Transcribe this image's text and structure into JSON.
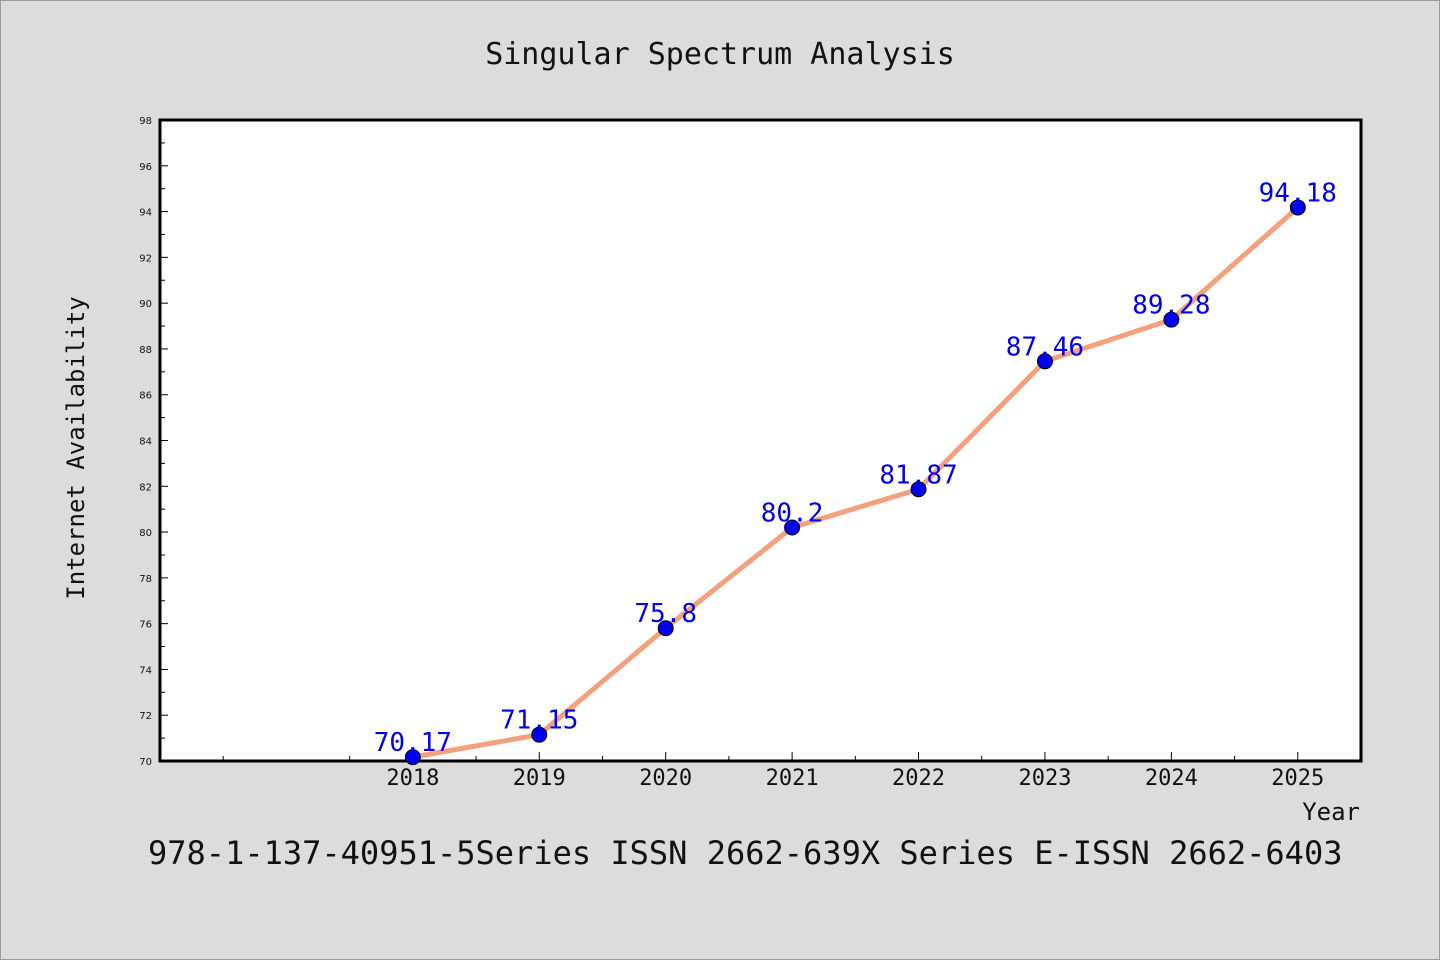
{
  "chart_data": {
    "type": "line",
    "title": "Singular Spectrum Analysis",
    "xlabel": "Year",
    "ylabel": "Internet Availability",
    "x": [
      2018,
      2019,
      2020,
      2021,
      2022,
      2023,
      2024,
      2025
    ],
    "x_tick_labels": [
      "2018",
      "2019",
      "2020",
      "2021",
      "2022",
      "2023",
      "2024",
      "2025"
    ],
    "series": [
      {
        "values": [
          70.17,
          71.15,
          75.8,
          80.2,
          81.87,
          87.46,
          89.28,
          94.18
        ],
        "line_color": "#f4a07c",
        "marker_color": "#0000ee",
        "data_labels": [
          "70.17",
          "71.15",
          "75.8",
          "80.2",
          "81.87",
          "87.46",
          "89.28",
          "94.18"
        ]
      }
    ],
    "xlim": [
      2016,
      2025.5
    ],
    "ylim": [
      70,
      98
    ],
    "y_ticks": [
      70,
      72,
      74,
      76,
      78,
      80,
      82,
      84,
      86,
      88,
      90,
      92,
      94,
      96,
      98
    ],
    "grid": false,
    "legend": "none"
  },
  "footer": "978-1-137-40951-5Series ISSN 2662-639X Series E-ISSN 2662-6403",
  "colors": {
    "background": "#dcdcdc",
    "plot_background": "#ffffff",
    "line": "#f4a07c",
    "marker": "#0000ee",
    "label": "#0000ee"
  }
}
